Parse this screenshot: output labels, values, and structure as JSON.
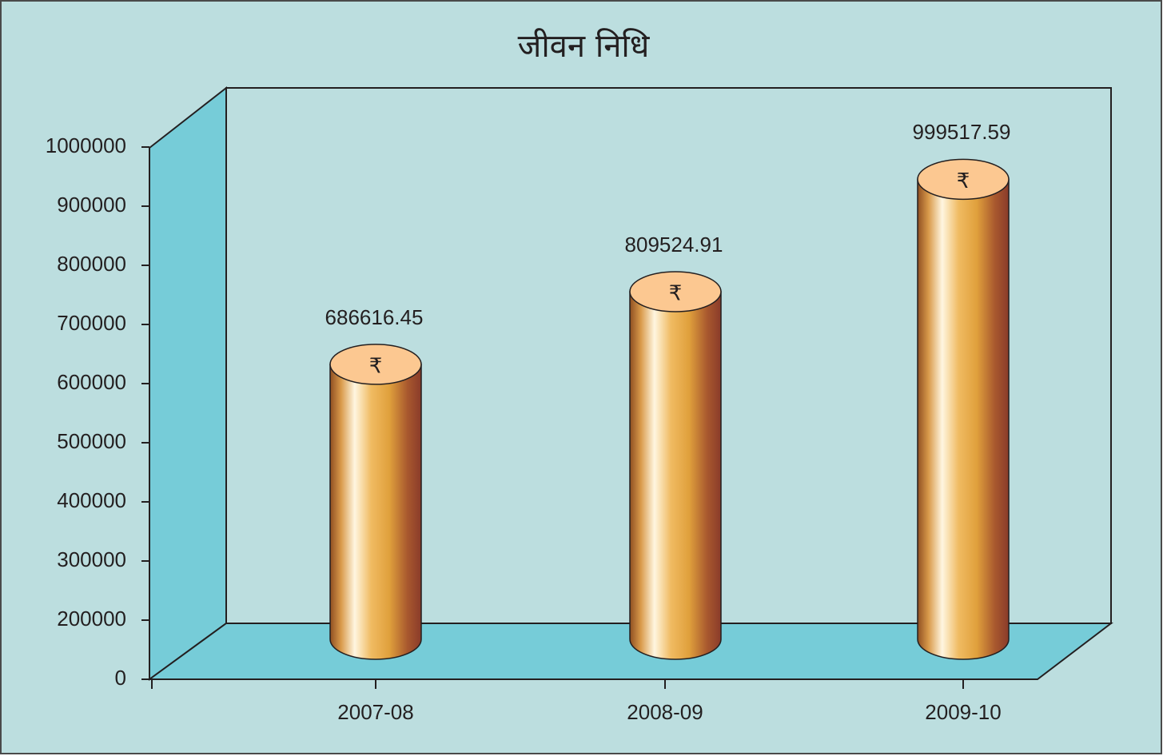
{
  "chart_data": {
    "type": "bar3d",
    "title": "जीवन निधि",
    "categories": [
      "2007-08",
      "2008-09",
      "2009-10"
    ],
    "values": [
      686616.45,
      809524.91,
      999517.59
    ],
    "currency_symbol": "₹",
    "ylim": [
      0,
      1000000
    ],
    "yticks": [
      0,
      200000,
      300000,
      400000,
      500000,
      600000,
      700000,
      800000,
      900000,
      1000000
    ],
    "colors": {
      "background": "#bcdedf",
      "walls": "#76ccd8",
      "cap": "#fcc891"
    }
  }
}
